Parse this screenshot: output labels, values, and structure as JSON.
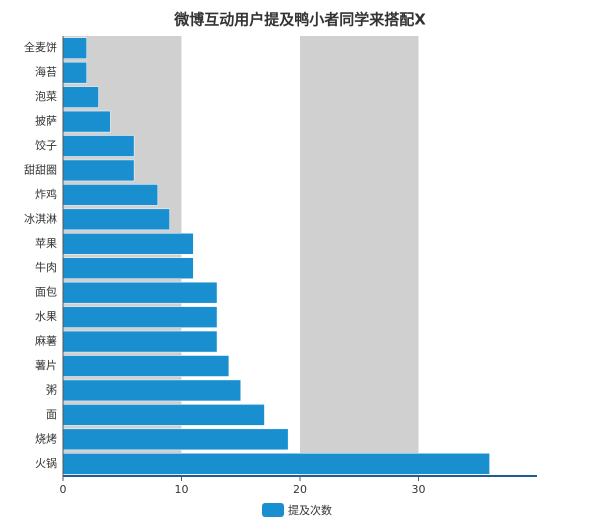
{
  "chart_data": {
    "type": "hbar",
    "title": "微博互动用户提及鸭小者同学来搭配X",
    "categories": [
      "全麦饼",
      "海苔",
      "泡菜",
      "披萨",
      "饺子",
      "甜甜圈",
      "炸鸡",
      "冰淇淋",
      "苹果",
      "牛肉",
      "面包",
      "水果",
      "麻薯",
      "薯片",
      "粥",
      "面",
      "烧烤",
      "火锅"
    ],
    "series": [
      {
        "name": "提及次数",
        "color": "#1a8fd0",
        "values": [
          2,
          2,
          3,
          4,
          6,
          6,
          8,
          9,
          11,
          11,
          13,
          13,
          13,
          14,
          15,
          17,
          19,
          36
        ]
      }
    ],
    "xlim": [
      0,
      40
    ],
    "xticks": [
      0,
      10,
      20,
      30
    ],
    "bands": true,
    "band_color": "#d0d0d0",
    "legend": "bottom"
  }
}
